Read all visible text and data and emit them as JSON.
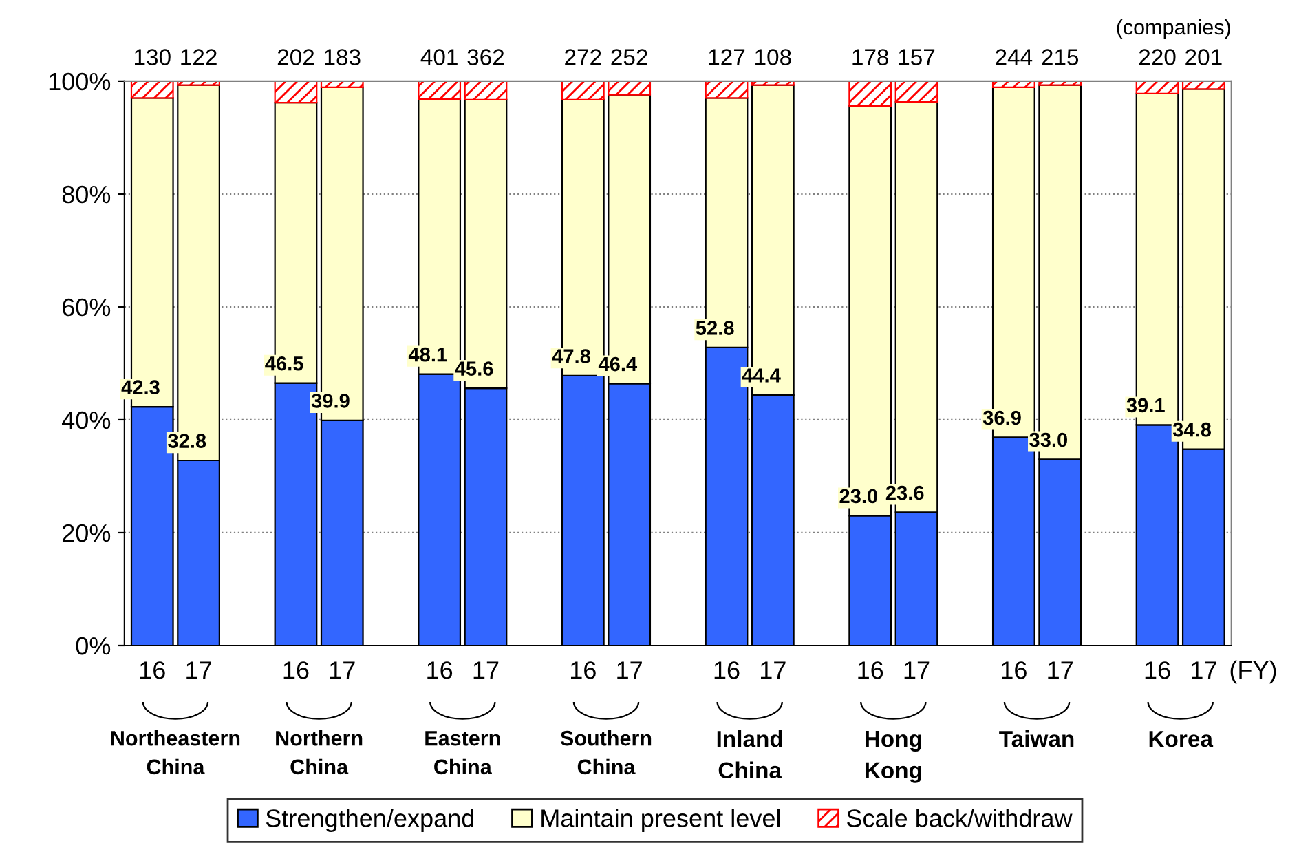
{
  "chart_data": {
    "type": "bar",
    "stacked": true,
    "categories": [
      "16",
      "17",
      "16",
      "17",
      "16",
      "17",
      "16",
      "17",
      "16",
      "17",
      "16",
      "17",
      "16",
      "17",
      "16",
      "17"
    ],
    "series": [
      {
        "name": "Strengthen/expand",
        "color": "#3366ff",
        "values": [
          42.3,
          32.8,
          46.5,
          39.9,
          48.1,
          45.6,
          47.8,
          46.4,
          52.8,
          44.4,
          23.0,
          23.6,
          36.9,
          33.0,
          39.1,
          34.8
        ],
        "value_labels": [
          "42.3",
          "32.8",
          "46.5",
          "39.9",
          "48.1",
          "45.6",
          "47.8",
          "46.4",
          "52.8",
          "44.4",
          "23.0",
          "23.6",
          "36.9",
          "33.0",
          "39.1",
          "34.8"
        ]
      },
      {
        "name": "Maintain present level",
        "color": "#ffffcc",
        "values": [
          54.7,
          66.5,
          49.7,
          59.0,
          48.7,
          51.1,
          48.9,
          51.2,
          44.2,
          54.9,
          72.6,
          72.7,
          62.0,
          66.3,
          58.7,
          63.8
        ]
      },
      {
        "name": "Scale back/withdraw",
        "color": "#ff0000",
        "values": [
          3.0,
          0.7,
          3.8,
          1.1,
          3.2,
          3.3,
          3.3,
          2.4,
          3.0,
          0.7,
          4.4,
          3.7,
          1.1,
          0.7,
          2.2,
          1.4
        ]
      }
    ],
    "annotations": [
      "Northeastern\nChina",
      "Northern\nChina",
      "Eastern\nChina",
      "Southern\nChina",
      "Inland\nChina",
      "Hong\nKong",
      "Taiwan",
      "Korea",
      "(FY)",
      "(companies)",
      "130",
      "122",
      "202",
      "183",
      "401",
      "362",
      "272",
      "252",
      "127",
      "108",
      "178",
      "157",
      "244",
      "215",
      "220",
      "201"
    ],
    "ylim": [
      0,
      100
    ],
    "yticks": [
      {
        "value": 0,
        "label": "0%"
      },
      {
        "value": 20,
        "label": "20%"
      },
      {
        "value": 40,
        "label": "40%"
      },
      {
        "value": 60,
        "label": "60%"
      },
      {
        "value": 80,
        "label": "80%"
      },
      {
        "value": 100,
        "label": "100%"
      }
    ],
    "grid": "y",
    "legend": "bottom"
  }
}
